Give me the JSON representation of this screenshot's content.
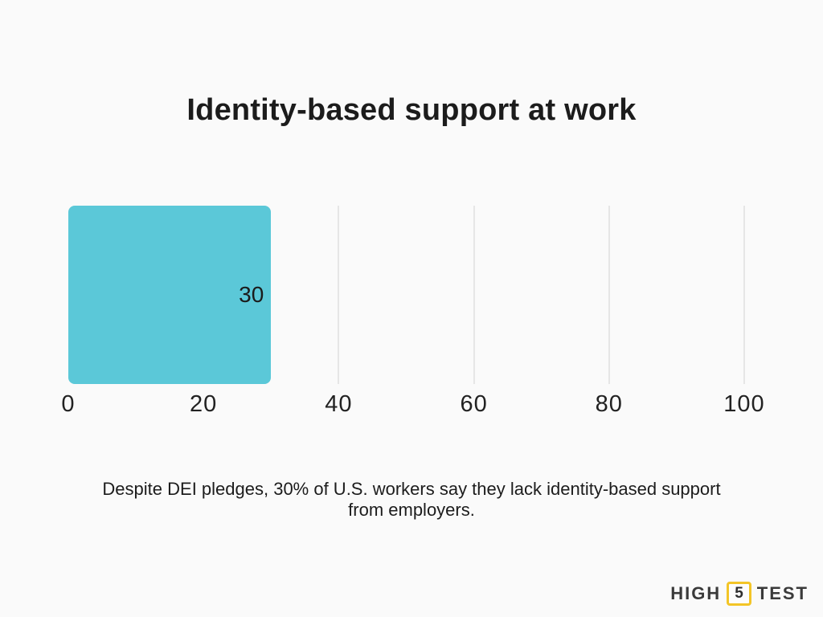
{
  "page": {
    "background": "#FAFAFA",
    "title": "Identity-based support at work",
    "caption_line1": "Despite DEI pledges, 30% of U.S. workers say they lack identity-based support",
    "caption_line2": "from employers."
  },
  "chart_data": {
    "type": "bar",
    "orientation": "horizontal",
    "title": "Identity-based support at work",
    "values": [
      30
    ],
    "value_labels": [
      "30"
    ],
    "xlabel": "",
    "ylabel": "",
    "xlim": [
      0,
      100
    ],
    "x_ticks": [
      0,
      20,
      40,
      60,
      80,
      100
    ],
    "x_tick_labels": [
      "0",
      "20",
      "40",
      "60",
      "80",
      "100"
    ],
    "gridlines": {
      "show": true,
      "at": [
        40,
        60,
        80,
        100
      ],
      "color": "#E6E6E6"
    },
    "bar_color": "#5BC8D8",
    "value_label_color": "#1B1B1B",
    "legend": {
      "show": false
    }
  },
  "logo": {
    "part1": "HIGH",
    "number": "5",
    "part2": "TEST",
    "accent_color": "#F3C527",
    "text_color": "#3A3A3A"
  }
}
